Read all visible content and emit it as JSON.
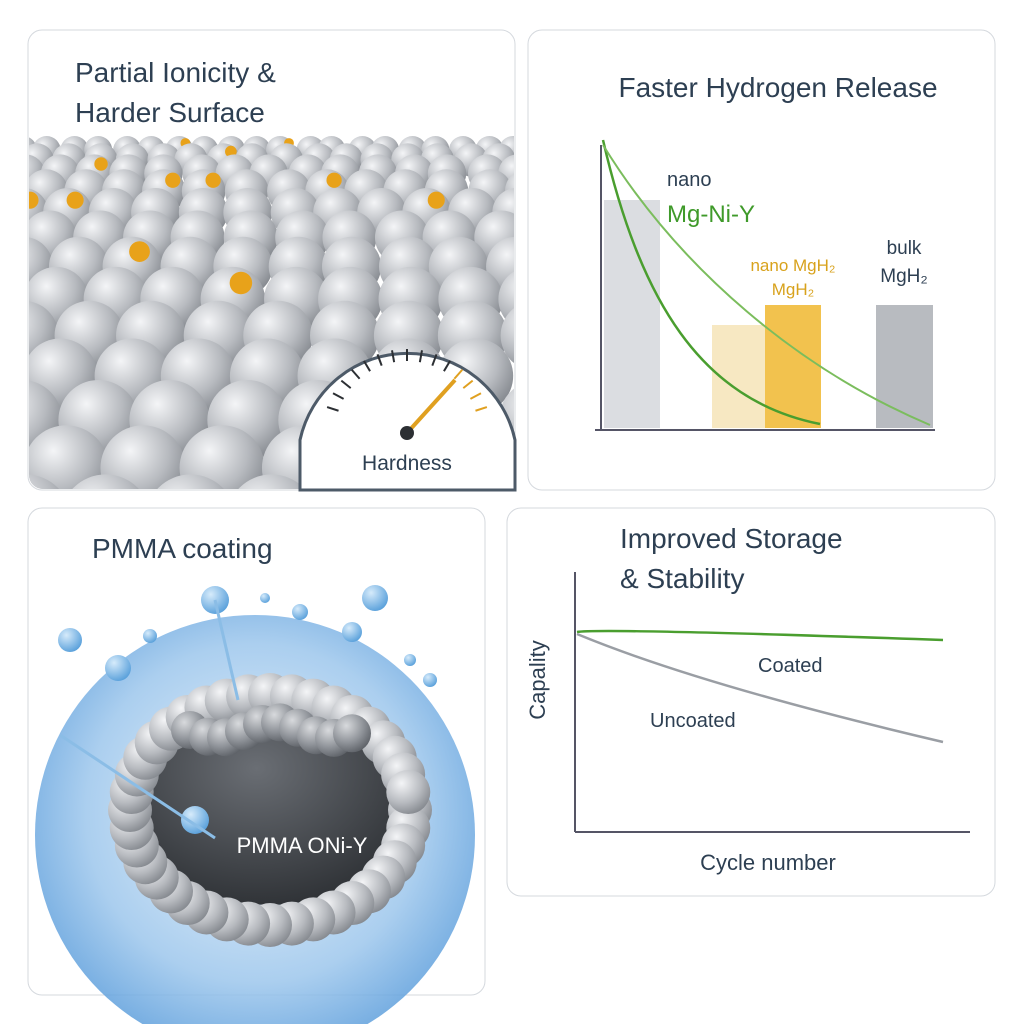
{
  "panels": [
    {
      "title_lines": [
        "Partial Ionicity &",
        "Harder Surface"
      ],
      "gauge_label": "Hardness"
    },
    {
      "title": "Faster Hydrogen Release",
      "labels": [
        "nano",
        "Mg-Ni-Y",
        "nano MgH₂",
        "MgH₂",
        "bulk",
        "MgH₂"
      ]
    },
    {
      "title": "PMMA coating",
      "core_label": "PMMA ONi-Y"
    },
    {
      "title_lines": [
        "Improved Storage",
        "& Stability"
      ],
      "y_label": "Capality",
      "x_label": "Cycle number",
      "line_labels": [
        "Coated",
        "Uncoated"
      ]
    }
  ]
}
